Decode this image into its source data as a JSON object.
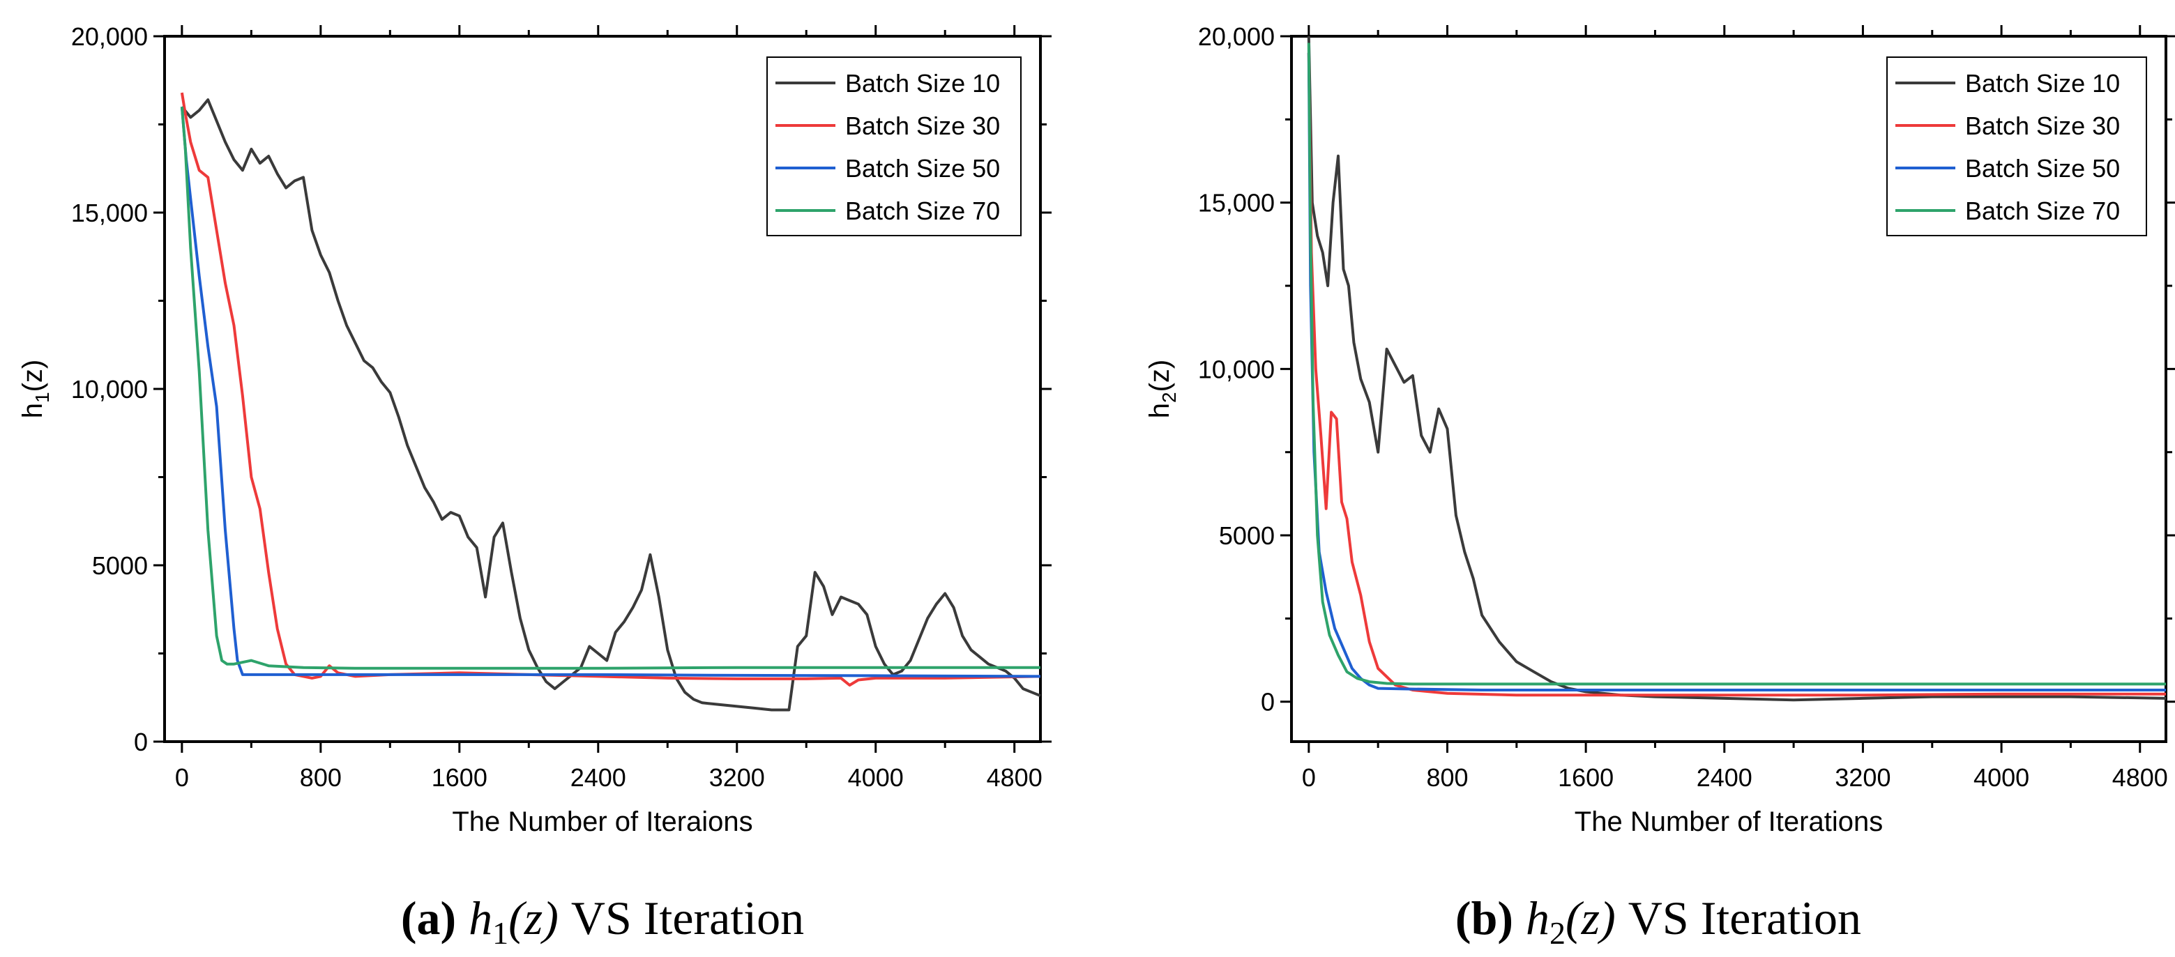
{
  "colors": {
    "Batch Size 10": "#3a3a3a",
    "Batch Size 30": "#ee3a3a",
    "Batch Size 50": "#1f5fd1",
    "Batch Size 70": "#2ea36b"
  },
  "legend_placement": "top-right",
  "chart_data": [
    {
      "type": "line",
      "caption": {
        "letter": "(a)",
        "rest": "VS Iteration",
        "fn": "h",
        "sub": "1",
        "arg": "(z)"
      },
      "xlabel": "The Number of Iteraions",
      "ylabel": {
        "base": "h",
        "sub": "1",
        "rest": "(z)"
      },
      "xlim": [
        -100,
        4950
      ],
      "ylim": [
        0,
        20000
      ],
      "xticks": [
        0,
        800,
        1600,
        2400,
        3200,
        4000,
        4800
      ],
      "xtick_labels": [
        "0",
        "800",
        "1600",
        "2400",
        "3200",
        "4000",
        "4800"
      ],
      "yticks": [
        0,
        5000,
        10000,
        15000,
        20000
      ],
      "ytick_labels": [
        "0",
        "5000",
        "10,000",
        "15,000",
        "20,000"
      ],
      "grid": false,
      "series": [
        {
          "name": "Batch Size 10",
          "x": [
            0,
            50,
            100,
            150,
            200,
            250,
            300,
            350,
            400,
            450,
            500,
            550,
            600,
            650,
            700,
            750,
            800,
            850,
            900,
            950,
            1000,
            1050,
            1100,
            1150,
            1200,
            1250,
            1300,
            1350,
            1400,
            1450,
            1500,
            1550,
            1600,
            1650,
            1700,
            1750,
            1800,
            1850,
            1900,
            1950,
            2000,
            2050,
            2100,
            2150,
            2200,
            2250,
            2300,
            2350,
            2400,
            2450,
            2500,
            2550,
            2600,
            2650,
            2700,
            2750,
            2800,
            2850,
            2900,
            2950,
            3000,
            3100,
            3200,
            3300,
            3400,
            3500,
            3550,
            3600,
            3650,
            3700,
            3750,
            3800,
            3850,
            3900,
            3950,
            4000,
            4050,
            4100,
            4150,
            4200,
            4250,
            4300,
            4350,
            4400,
            4450,
            4500,
            4550,
            4600,
            4650,
            4700,
            4750,
            4800,
            4850,
            4900,
            4950
          ],
          "y": [
            18000,
            17700,
            17900,
            18200,
            17600,
            17000,
            16500,
            16200,
            16800,
            16400,
            16600,
            16100,
            15700,
            15900,
            16000,
            14500,
            13800,
            13300,
            12500,
            11800,
            11300,
            10800,
            10600,
            10200,
            9900,
            9200,
            8400,
            7800,
            7200,
            6800,
            6300,
            6500,
            6400,
            5800,
            5500,
            4100,
            5800,
            6200,
            4800,
            3500,
            2600,
            2100,
            1700,
            1500,
            1700,
            1900,
            2100,
            2700,
            2500,
            2300,
            3100,
            3400,
            3800,
            4300,
            5300,
            4100,
            2600,
            1800,
            1400,
            1200,
            1100,
            1050,
            1000,
            950,
            900,
            900,
            2700,
            3000,
            4800,
            4400,
            3600,
            4100,
            4000,
            3900,
            3600,
            2700,
            2200,
            1900,
            2000,
            2300,
            2900,
            3500,
            3900,
            4200,
            3800,
            3000,
            2600,
            2400,
            2200,
            2100,
            2000,
            1800,
            1500,
            1400,
            1300
          ]
        },
        {
          "name": "Batch Size 30",
          "x": [
            0,
            20,
            50,
            100,
            150,
            200,
            250,
            300,
            350,
            400,
            450,
            500,
            550,
            600,
            650,
            700,
            750,
            800,
            850,
            900,
            1000,
            1200,
            1600,
            2000,
            2400,
            2800,
            3200,
            3600,
            3800,
            3850,
            3900,
            4000,
            4400,
            4950
          ],
          "y": [
            18400,
            17800,
            17000,
            16200,
            16000,
            14500,
            13000,
            11800,
            9800,
            7500,
            6600,
            4800,
            3200,
            2200,
            1900,
            1850,
            1800,
            1850,
            2150,
            1950,
            1850,
            1900,
            1950,
            1900,
            1850,
            1800,
            1780,
            1780,
            1800,
            1600,
            1750,
            1800,
            1800,
            1850
          ]
        },
        {
          "name": "Batch Size 50",
          "x": [
            0,
            25,
            50,
            100,
            150,
            200,
            250,
            300,
            320,
            350,
            400,
            600,
            1000,
            1600,
            2400,
            3200,
            4000,
            4950
          ],
          "y": [
            18000,
            16500,
            15400,
            13200,
            11200,
            9500,
            6000,
            3200,
            2300,
            1900,
            1900,
            1900,
            1900,
            1900,
            1900,
            1880,
            1870,
            1850
          ]
        },
        {
          "name": "Batch Size 70",
          "x": [
            0,
            20,
            50,
            100,
            150,
            200,
            230,
            260,
            300,
            400,
            500,
            700,
            1000,
            1600,
            2400,
            3200,
            4000,
            4950
          ],
          "y": [
            18000,
            16800,
            14000,
            10500,
            6000,
            3000,
            2300,
            2200,
            2200,
            2300,
            2150,
            2100,
            2080,
            2080,
            2080,
            2100,
            2100,
            2100
          ]
        }
      ]
    },
    {
      "type": "line",
      "caption": {
        "letter": "(b)",
        "rest": "VS Iteration",
        "fn": "h",
        "sub": "2",
        "arg": "(z)"
      },
      "xlabel": "The Number of Iterations",
      "ylabel": {
        "base": "h",
        "sub": "2",
        "rest": "(z)"
      },
      "xlim": [
        -100,
        4950
      ],
      "ylim": [
        -1200,
        20000
      ],
      "xticks": [
        0,
        800,
        1600,
        2400,
        3200,
        4000,
        4800
      ],
      "xtick_labels": [
        "0",
        "800",
        "1600",
        "2400",
        "3200",
        "4000",
        "4800"
      ],
      "yticks": [
        0,
        5000,
        10000,
        15000,
        20000
      ],
      "ytick_labels": [
        "0",
        "5000",
        "10,000",
        "15,000",
        "20,000"
      ],
      "grid": false,
      "series": [
        {
          "name": "Batch Size 10",
          "x": [
            0,
            20,
            50,
            80,
            110,
            140,
            170,
            200,
            230,
            260,
            300,
            350,
            400,
            450,
            500,
            550,
            600,
            650,
            700,
            750,
            800,
            850,
            900,
            950,
            1000,
            1100,
            1200,
            1300,
            1400,
            1500,
            1600,
            1800,
            2000,
            2400,
            2800,
            3200,
            3600,
            4000,
            4400,
            4950
          ],
          "y": [
            20000,
            15000,
            14000,
            13500,
            12500,
            15000,
            16400,
            13000,
            12500,
            10800,
            9700,
            9000,
            7500,
            10600,
            10100,
            9600,
            9800,
            8000,
            7500,
            8800,
            8200,
            5600,
            4500,
            3700,
            2600,
            1800,
            1200,
            900,
            600,
            400,
            300,
            200,
            150,
            100,
            50,
            100,
            150,
            150,
            150,
            100
          ]
        },
        {
          "name": "Batch Size 30",
          "x": [
            0,
            15,
            40,
            70,
            100,
            130,
            160,
            190,
            220,
            250,
            300,
            350,
            400,
            500,
            600,
            800,
            1200,
            1600,
            2400,
            3200,
            4000,
            4950
          ],
          "y": [
            19500,
            13500,
            10000,
            8000,
            5800,
            8700,
            8500,
            6000,
            5500,
            4200,
            3200,
            1800,
            1000,
            500,
            350,
            250,
            200,
            200,
            200,
            200,
            230,
            230
          ]
        },
        {
          "name": "Batch Size 50",
          "x": [
            0,
            10,
            30,
            60,
            100,
            150,
            200,
            250,
            300,
            350,
            400,
            600,
            1000,
            2000,
            3000,
            4000,
            4950
          ],
          "y": [
            19500,
            12500,
            7500,
            4500,
            3300,
            2200,
            1600,
            1000,
            700,
            500,
            400,
            380,
            350,
            350,
            350,
            350,
            350
          ]
        },
        {
          "name": "Batch Size 70",
          "x": [
            0,
            10,
            25,
            50,
            80,
            120,
            170,
            220,
            280,
            350,
            450,
            600,
            1000,
            2000,
            3000,
            4000,
            4950
          ],
          "y": [
            19800,
            14000,
            9000,
            5000,
            3000,
            2000,
            1400,
            900,
            700,
            600,
            550,
            530,
            530,
            530,
            530,
            530,
            530
          ]
        }
      ]
    }
  ]
}
